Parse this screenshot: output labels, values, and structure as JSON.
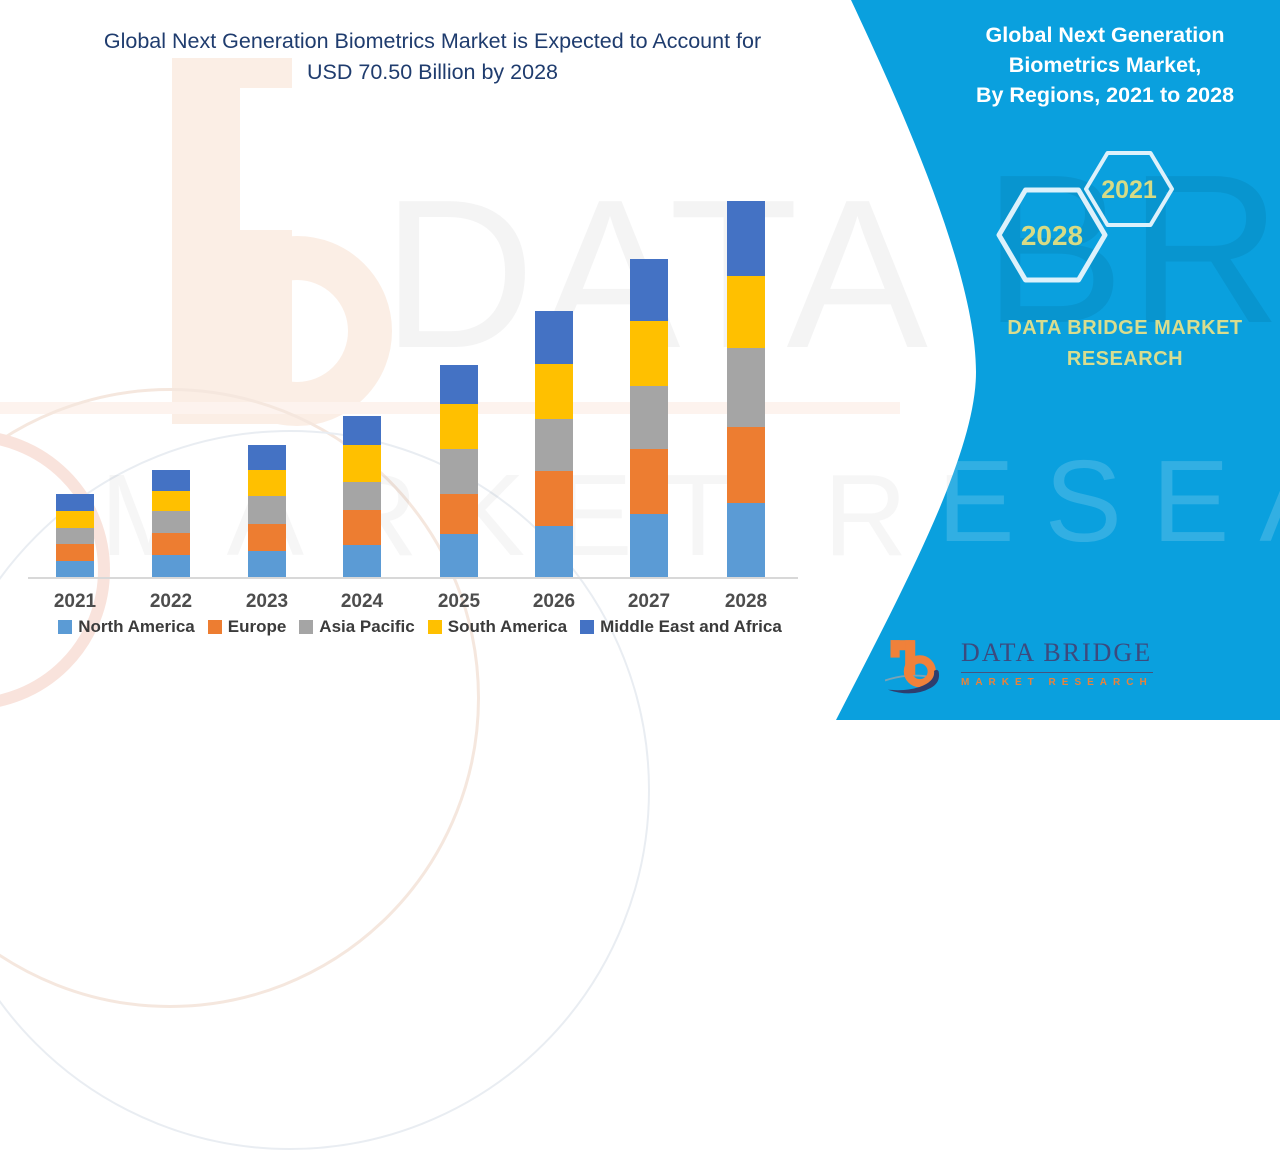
{
  "page": {
    "title_line1": "Global Next Generation Biometrics Market is Expected to Account for",
    "title_line2": "USD 70.50 Billion by 2028"
  },
  "sidebar": {
    "title_line1": "Global Next Generation",
    "title_line2": "Biometrics Market,",
    "title_line3": "By Regions, 2021 to 2028",
    "hex_front_label": "2021",
    "hex_back_label": "2028",
    "brand_line1": "DATA BRIDGE MARKET",
    "brand_line2": "RESEARCH",
    "background_color": "#0aa0de",
    "accent_text_color": "#d9dd8e"
  },
  "logo": {
    "name_text": "DATA BRIDGE",
    "tagline_text": "MARKET RESEARCH"
  },
  "watermark": {
    "line1": "DATA BRIDGE",
    "line2": "MARKET RESEARCH"
  },
  "chart_data": {
    "type": "bar",
    "stacked": true,
    "title": "Global Next Generation Biometrics Market is Expected to Account for USD 70.50 Billion by 2028",
    "unit": "USD Billion",
    "categories": [
      "2021",
      "2022",
      "2023",
      "2024",
      "2025",
      "2026",
      "2027",
      "2028"
    ],
    "series": [
      {
        "name": "North America",
        "color": "#5B9BD5",
        "values": [
          3.0,
          4.1,
          4.9,
          6.0,
          8.1,
          9.6,
          11.8,
          13.9
        ]
      },
      {
        "name": "Europe",
        "color": "#ED7D31",
        "values": [
          3.2,
          4.1,
          5.1,
          6.6,
          7.5,
          10.3,
          12.2,
          14.2
        ]
      },
      {
        "name": "Asia Pacific",
        "color": "#A5A5A5",
        "values": [
          2.9,
          4.1,
          5.1,
          5.3,
          8.4,
          9.8,
          11.8,
          14.8
        ]
      },
      {
        "name": "South America",
        "color": "#FFC000",
        "values": [
          3.2,
          3.8,
          4.9,
          6.9,
          8.4,
          10.3,
          12.2,
          13.5
        ]
      },
      {
        "name": "Middle East and Africa",
        "color": "#4472C4",
        "values": [
          3.2,
          3.9,
          4.7,
          5.4,
          7.3,
          9.9,
          11.6,
          14.1
        ]
      }
    ],
    "totals_estimated": [
      15.5,
      20.0,
      24.7,
      30.2,
      39.7,
      49.9,
      59.6,
      70.5
    ],
    "highlight_total": {
      "year": "2028",
      "value": 70.5
    },
    "ylim": [
      0,
      75
    ],
    "grid": false,
    "y_axis_visible": false,
    "legend_position": "bottom"
  }
}
